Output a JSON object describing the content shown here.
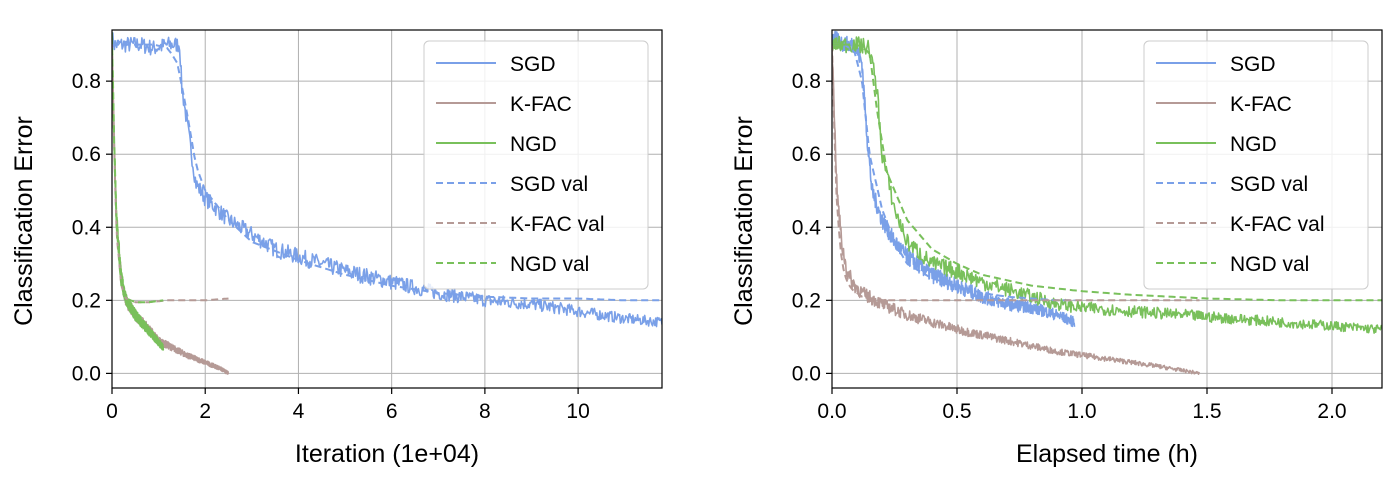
{
  "chart_data": [
    {
      "type": "line",
      "xlabel": "Iteration (1e+04)",
      "ylabel": "Classification Error",
      "xlim": [
        0,
        11.8
      ],
      "ylim": [
        -0.04,
        0.94
      ],
      "xticks": [
        0,
        2,
        4,
        6,
        8,
        10
      ],
      "yticks": [
        0.0,
        0.2,
        0.4,
        0.6,
        0.8
      ],
      "grid": true,
      "legend_position": "top-right",
      "series": [
        {
          "name": "SGD",
          "style": "solid",
          "color": "#7aa0e8",
          "x": [
            0,
            0.05,
            0.3,
            0.6,
            0.9,
            1.2,
            1.45,
            1.5,
            1.65,
            1.8,
            2.0,
            2.5,
            3.0,
            3.5,
            4.0,
            5.0,
            6.0,
            7.0,
            8.0,
            9.0,
            10.0,
            11.0,
            11.8
          ],
          "y": [
            0.92,
            0.9,
            0.9,
            0.9,
            0.89,
            0.9,
            0.9,
            0.78,
            0.65,
            0.52,
            0.48,
            0.42,
            0.38,
            0.34,
            0.32,
            0.28,
            0.25,
            0.22,
            0.2,
            0.19,
            0.17,
            0.15,
            0.14
          ]
        },
        {
          "name": "K-FAC",
          "style": "solid",
          "color": "#b59a96",
          "x": [
            0,
            0.05,
            0.1,
            0.2,
            0.3,
            0.5,
            0.8,
            1.0,
            1.3,
            1.6,
            2.0,
            2.3,
            2.5
          ],
          "y": [
            0.9,
            0.6,
            0.4,
            0.26,
            0.2,
            0.16,
            0.12,
            0.09,
            0.07,
            0.05,
            0.03,
            0.015,
            0.0
          ]
        },
        {
          "name": "NGD",
          "style": "solid",
          "color": "#79c05b",
          "x": [
            0,
            0.05,
            0.1,
            0.2,
            0.3,
            0.5,
            0.7,
            0.9,
            1.1
          ],
          "y": [
            0.92,
            0.62,
            0.42,
            0.26,
            0.2,
            0.16,
            0.13,
            0.1,
            0.07
          ]
        },
        {
          "name": "SGD val",
          "style": "dashed",
          "color": "#7aa0e8",
          "x": [
            0,
            0.05,
            0.3,
            0.6,
            0.9,
            1.2,
            1.4,
            1.6,
            1.8,
            2.0,
            2.5,
            3.0,
            4.0,
            5.0,
            6.0,
            7.0,
            8.0,
            9.0,
            10.0,
            11.0,
            11.8
          ],
          "y": [
            0.9,
            0.9,
            0.9,
            0.9,
            0.9,
            0.89,
            0.85,
            0.72,
            0.57,
            0.5,
            0.42,
            0.36,
            0.31,
            0.27,
            0.24,
            0.22,
            0.21,
            0.205,
            0.205,
            0.2,
            0.2
          ]
        },
        {
          "name": "K-FAC val",
          "style": "dashed",
          "color": "#b59a96",
          "x": [
            0,
            0.05,
            0.1,
            0.2,
            0.3,
            0.5,
            0.8,
            1.2,
            1.6,
            2.0,
            2.5
          ],
          "y": [
            0.9,
            0.6,
            0.38,
            0.24,
            0.205,
            0.195,
            0.195,
            0.2,
            0.2,
            0.2,
            0.205
          ]
        },
        {
          "name": "NGD val",
          "style": "dashed",
          "color": "#79c05b",
          "x": [
            0,
            0.05,
            0.1,
            0.2,
            0.3,
            0.5,
            0.8,
            1.1
          ],
          "y": [
            0.92,
            0.62,
            0.4,
            0.24,
            0.205,
            0.195,
            0.195,
            0.2
          ]
        }
      ]
    },
    {
      "type": "line",
      "xlabel": "Elapsed time (h)",
      "ylabel": "Classification Error",
      "xlim": [
        0,
        2.2
      ],
      "ylim": [
        -0.04,
        0.94
      ],
      "xticks": [
        0.0,
        0.5,
        1.0,
        1.5,
        2.0
      ],
      "yticks": [
        0.0,
        0.2,
        0.4,
        0.6,
        0.8
      ],
      "grid": true,
      "legend_position": "top-right",
      "series": [
        {
          "name": "SGD",
          "style": "solid",
          "color": "#7aa0e8",
          "x": [
            0,
            0.05,
            0.09,
            0.12,
            0.14,
            0.16,
            0.2,
            0.25,
            0.3,
            0.4,
            0.5,
            0.6,
            0.7,
            0.8,
            0.9,
            0.97
          ],
          "y": [
            0.92,
            0.9,
            0.9,
            0.85,
            0.65,
            0.5,
            0.42,
            0.36,
            0.32,
            0.27,
            0.24,
            0.21,
            0.19,
            0.18,
            0.16,
            0.14
          ]
        },
        {
          "name": "K-FAC",
          "style": "solid",
          "color": "#b59a96",
          "x": [
            0,
            0.01,
            0.02,
            0.04,
            0.06,
            0.08,
            0.12,
            0.2,
            0.3,
            0.5,
            0.7,
            0.9,
            1.1,
            1.3,
            1.47
          ],
          "y": [
            0.9,
            0.7,
            0.5,
            0.35,
            0.28,
            0.25,
            0.22,
            0.19,
            0.16,
            0.12,
            0.09,
            0.06,
            0.04,
            0.02,
            0.0
          ]
        },
        {
          "name": "NGD",
          "style": "solid",
          "color": "#79c05b",
          "x": [
            0,
            0.1,
            0.15,
            0.18,
            0.2,
            0.25,
            0.3,
            0.4,
            0.5,
            0.6,
            0.7,
            0.8,
            0.9,
            1.0,
            1.2,
            1.4,
            1.6,
            1.8,
            2.0,
            2.2
          ],
          "y": [
            0.9,
            0.9,
            0.89,
            0.78,
            0.6,
            0.45,
            0.36,
            0.3,
            0.28,
            0.25,
            0.23,
            0.21,
            0.19,
            0.18,
            0.17,
            0.16,
            0.15,
            0.14,
            0.13,
            0.12
          ]
        },
        {
          "name": "SGD val",
          "style": "dashed",
          "color": "#7aa0e8",
          "x": [
            0,
            0.05,
            0.09,
            0.12,
            0.15,
            0.2,
            0.25,
            0.3,
            0.4,
            0.5,
            0.6,
            0.7,
            0.8,
            0.9,
            0.97
          ],
          "y": [
            0.9,
            0.9,
            0.88,
            0.8,
            0.6,
            0.45,
            0.36,
            0.3,
            0.26,
            0.24,
            0.22,
            0.21,
            0.205,
            0.2,
            0.2
          ]
        },
        {
          "name": "K-FAC val",
          "style": "dashed",
          "color": "#b59a96",
          "x": [
            0,
            0.01,
            0.02,
            0.04,
            0.06,
            0.08,
            0.12,
            0.2,
            0.3,
            0.5,
            0.7,
            0.9,
            1.1,
            1.3,
            1.47
          ],
          "y": [
            0.9,
            0.65,
            0.45,
            0.3,
            0.25,
            0.23,
            0.21,
            0.2,
            0.2,
            0.2,
            0.2,
            0.2,
            0.2,
            0.2,
            0.2
          ]
        },
        {
          "name": "NGD val",
          "style": "dashed",
          "color": "#79c05b",
          "x": [
            0,
            0.1,
            0.15,
            0.18,
            0.22,
            0.3,
            0.4,
            0.5,
            0.6,
            0.8,
            1.0,
            1.2,
            1.5,
            1.8,
            2.2
          ],
          "y": [
            0.9,
            0.9,
            0.88,
            0.72,
            0.55,
            0.42,
            0.34,
            0.3,
            0.27,
            0.24,
            0.225,
            0.215,
            0.205,
            0.2,
            0.2
          ]
        }
      ]
    }
  ]
}
